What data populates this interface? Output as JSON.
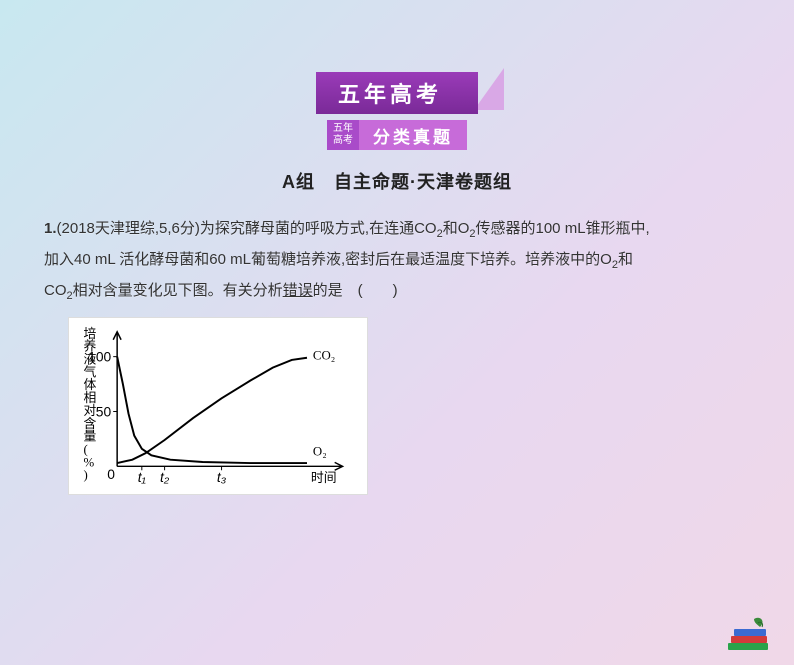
{
  "banners": {
    "top": "五年高考",
    "sub_left_l1": "五年",
    "sub_left_l2": "高考",
    "sub_right": "分类真题"
  },
  "group_title": "A组　自主命题·天津卷题组",
  "question": {
    "num": "1.",
    "source": "(2018天津理综,5,6分)",
    "line1a": "为探究酵母菌的呼吸方式,在连通CO",
    "line1b": "和O",
    "line1c": "传感器的100 mL锥形瓶中,",
    "line2a": "加入40 mL 活化酵母菌和60 mL葡萄糖培养液,密封后在最适温度下培养。培养液中的O",
    "line2b": "和",
    "line3a": "CO",
    "line3b": "相对含量变化见下图。有关分析",
    "err": "错误",
    "line3c": "的是　(　　)"
  },
  "chart": {
    "type": "line",
    "background_color": "#ffffff",
    "axis_color": "#000000",
    "ylabel": "培养液气体相对含量(%)",
    "xlabel": "时间",
    "yticks": [
      {
        "v": 0,
        "label": "0"
      },
      {
        "v": 50,
        "label": "50"
      },
      {
        "v": 100,
        "label": "100"
      }
    ],
    "xticks": [
      "t₁",
      "t₂",
      "t₃"
    ],
    "ylim": [
      0,
      110
    ],
    "series": {
      "CO2": {
        "label": "CO₂",
        "color": "#000000",
        "stroke_width": 2,
        "points": [
          [
            0,
            3
          ],
          [
            8,
            6
          ],
          [
            15,
            12
          ],
          [
            25,
            24
          ],
          [
            40,
            44
          ],
          [
            55,
            62
          ],
          [
            70,
            78
          ],
          [
            82,
            90
          ],
          [
            92,
            97
          ],
          [
            100,
            99
          ]
        ]
      },
      "O2": {
        "label": "O₂",
        "color": "#000000",
        "stroke_width": 2,
        "points": [
          [
            0,
            100
          ],
          [
            3,
            75
          ],
          [
            6,
            48
          ],
          [
            9,
            28
          ],
          [
            13,
            16
          ],
          [
            18,
            10
          ],
          [
            28,
            6
          ],
          [
            45,
            4
          ],
          [
            70,
            3
          ],
          [
            100,
            3
          ]
        ]
      }
    },
    "xtick_positions": [
      13,
      25,
      55
    ],
    "label_fontsize": 13
  },
  "colors": {
    "banner_grad_top": "#9a3bb8",
    "banner_grad_bot": "#7a2a98",
    "banner_tri": "#d9a8e6",
    "sub_left": "#a94bc9",
    "sub_right": "#c76bd9",
    "bg_grad": [
      "#c8e8f0",
      "#d8e0f0",
      "#e8d8f0",
      "#f0d8e8"
    ]
  }
}
